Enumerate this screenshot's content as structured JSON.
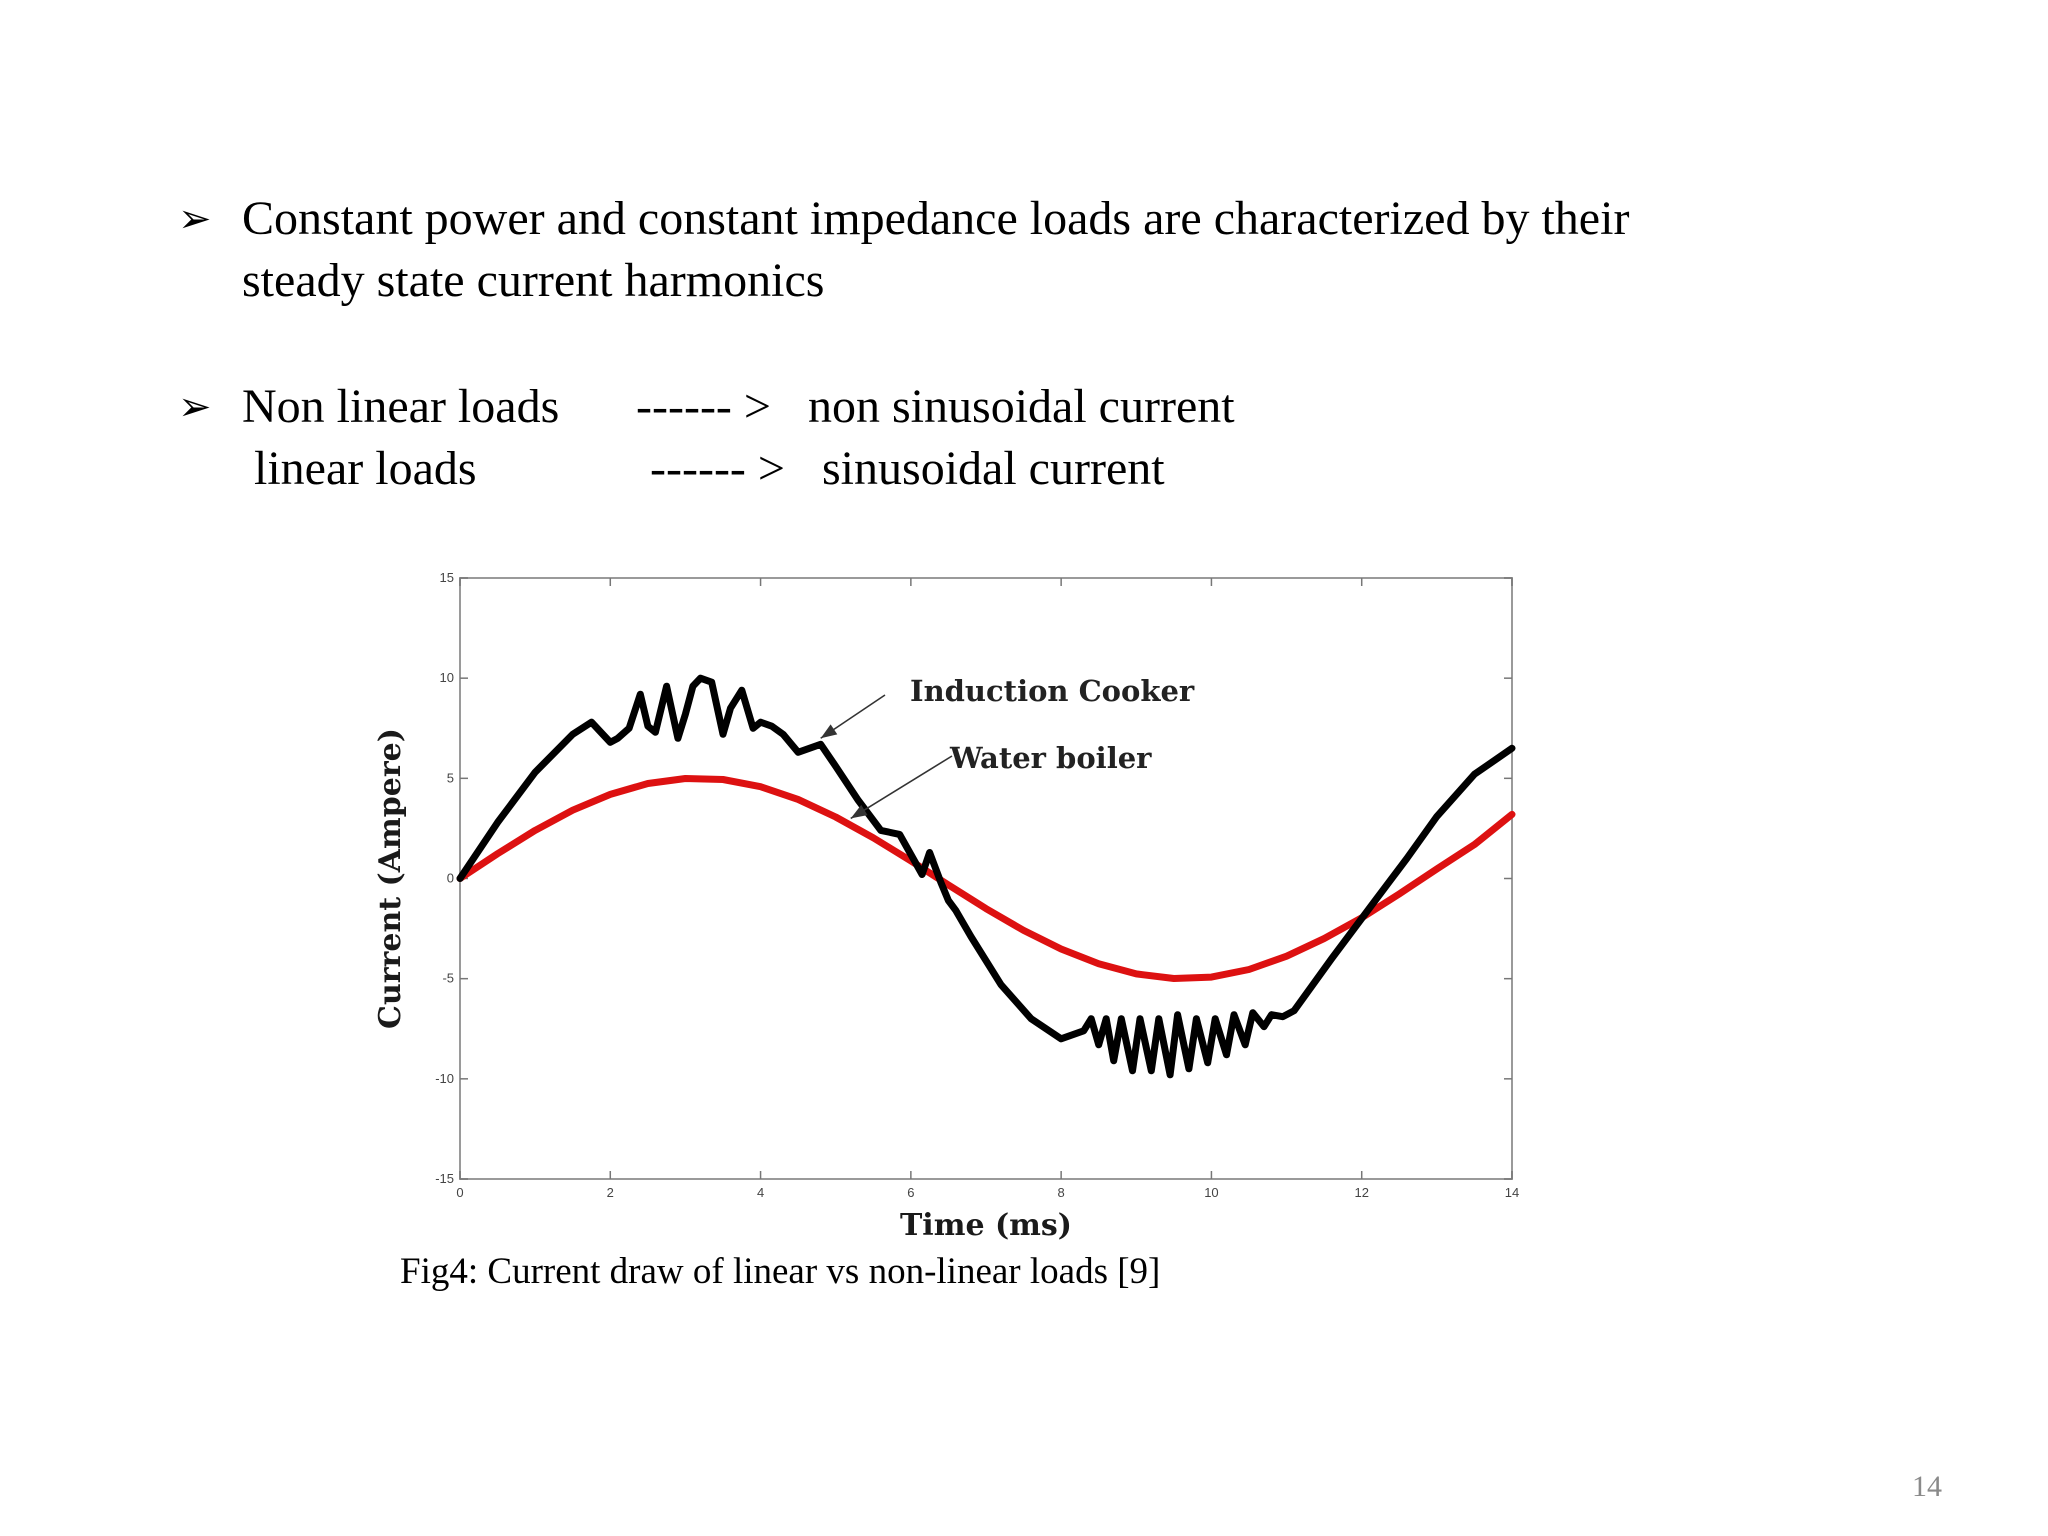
{
  "bullets": [
    {
      "line1": "Constant power and constant impedance loads are characterized by their",
      "line2": "steady state current harmonics"
    },
    {
      "rows": [
        {
          "load": "Non linear loads",
          "arrow": "------ >",
          "result": "non sinusoidal current"
        },
        {
          "load": "linear loads",
          "arrow": "------ >",
          "result": "sinusoidal current"
        }
      ]
    }
  ],
  "bullet_icon": "arrowhead-bullet-icon",
  "caption": "Fig4: Current draw of  linear vs non-linear loads [9]",
  "page_number": "14",
  "chart_data": {
    "type": "line",
    "xlabel": "Time (ms)",
    "ylabel": "Current (Ampere)",
    "xlim": [
      0,
      14
    ],
    "ylim": [
      -15,
      15
    ],
    "xticks": [
      "0",
      "2",
      "4",
      "6",
      "8",
      "10",
      "12",
      "14"
    ],
    "yticks": [
      "15",
      "10",
      "5",
      "0",
      "-5",
      "-10",
      "-15"
    ],
    "grid": false,
    "annotations": [
      {
        "text": "Induction Cooker",
        "points_to": [
          4.8,
          7.0
        ]
      },
      {
        "text": "Water boiler",
        "points_to": [
          5.2,
          3.0
        ]
      }
    ],
    "series": [
      {
        "name": "Induction Cooker",
        "color": "#000000",
        "x": [
          0,
          0.5,
          1.0,
          1.5,
          1.75,
          1.9,
          2.0,
          2.1,
          2.25,
          2.4,
          2.5,
          2.6,
          2.75,
          2.9,
          3.0,
          3.1,
          3.2,
          3.35,
          3.5,
          3.6,
          3.75,
          3.9,
          4.0,
          4.15,
          4.3,
          4.5,
          4.65,
          4.8,
          5.0,
          5.3,
          5.6,
          5.85,
          6.0,
          6.15,
          6.25,
          6.4,
          6.5,
          6.6,
          6.8,
          7.2,
          7.6,
          8.0,
          8.3,
          8.4,
          8.5,
          8.6,
          8.7,
          8.8,
          8.95,
          9.05,
          9.2,
          9.3,
          9.45,
          9.55,
          9.7,
          9.8,
          9.95,
          10.05,
          10.2,
          10.3,
          10.45,
          10.55,
          10.7,
          10.8,
          10.95,
          11.1,
          11.6,
          12.2,
          12.6,
          13.0,
          13.5,
          14.0
        ],
        "y": [
          0,
          2.8,
          5.3,
          7.2,
          7.8,
          7.2,
          6.8,
          7.0,
          7.5,
          9.2,
          7.6,
          7.3,
          9.6,
          7.0,
          8.2,
          9.6,
          10.0,
          9.8,
          7.2,
          8.5,
          9.4,
          7.5,
          7.8,
          7.6,
          7.2,
          6.3,
          6.5,
          6.7,
          5.6,
          3.9,
          2.4,
          2.2,
          1.2,
          0.2,
          1.3,
          -0.2,
          -1.1,
          -1.6,
          -2.9,
          -5.3,
          -7.0,
          -8.0,
          -7.6,
          -7.0,
          -8.3,
          -7.0,
          -9.1,
          -7.0,
          -9.6,
          -7.0,
          -9.6,
          -7.0,
          -9.8,
          -6.8,
          -9.5,
          -7.0,
          -9.2,
          -7.0,
          -8.8,
          -6.8,
          -8.3,
          -6.7,
          -7.4,
          -6.8,
          -6.9,
          -6.6,
          -4.0,
          -1.0,
          1.0,
          3.1,
          5.2,
          6.5
        ]
      },
      {
        "name": "Water boiler",
        "color": "#dd1111",
        "x": [
          0,
          0.5,
          1.0,
          1.5,
          2.0,
          2.5,
          3.0,
          3.5,
          4.0,
          4.5,
          5.0,
          5.5,
          6.0,
          6.5,
          7.0,
          7.5,
          8.0,
          8.5,
          9.0,
          9.5,
          10.0,
          10.5,
          11.0,
          11.5,
          12.0,
          12.5,
          13.0,
          13.5,
          14.0
        ],
        "y": [
          0,
          1.24,
          2.4,
          3.41,
          4.2,
          4.74,
          4.99,
          4.94,
          4.58,
          3.95,
          3.07,
          2.03,
          0.88,
          -0.32,
          -1.5,
          -2.59,
          -3.52,
          -4.26,
          -4.76,
          -4.99,
          -4.92,
          -4.54,
          -3.88,
          -3.0,
          -1.96,
          -0.77,
          0.48,
          1.69,
          3.2
        ]
      }
    ]
  }
}
